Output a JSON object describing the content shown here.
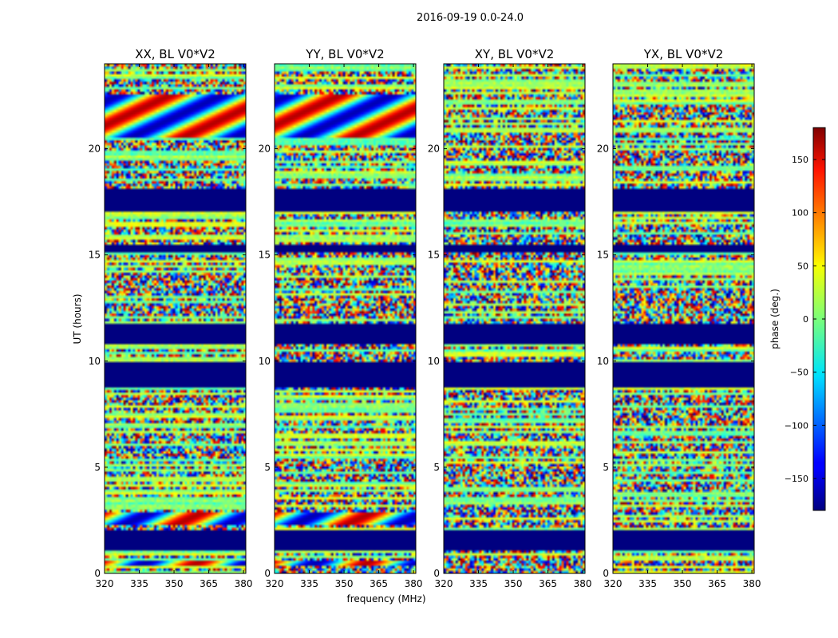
{
  "figure": {
    "suptitle": "2016-09-19 0.0-24.0",
    "xlabel": "frequency (MHz)",
    "ylabel": "UT (hours)"
  },
  "colorbar": {
    "label": "phase (deg.)",
    "ticks": [
      150,
      100,
      50,
      0,
      -50,
      -100,
      -150
    ],
    "tick_labels": [
      "150",
      "100",
      "50",
      "0",
      "−50",
      "−100",
      "−150"
    ],
    "range": [
      -180,
      180
    ],
    "colormap": "jet"
  },
  "chart_data": {
    "type": "heatmap",
    "x_label": "frequency (MHz)",
    "y_label": "UT (hours)",
    "x_range": [
      320,
      381
    ],
    "y_range": [
      0,
      24
    ],
    "x_ticks": [
      320,
      335,
      350,
      365,
      380
    ],
    "y_ticks": [
      0,
      5,
      10,
      15,
      20
    ],
    "value_label": "phase (deg.)",
    "value_range": [
      -180,
      180
    ],
    "masked_time_bands": [
      [
        1.1,
        2.0
      ],
      [
        8.8,
        10.0
      ],
      [
        10.8,
        11.8
      ],
      [
        15.1,
        15.5
      ],
      [
        17.1,
        18.1
      ]
    ],
    "panels": [
      {
        "title": "XX, BL V0*V2",
        "coherent_bands": [
          [
            20.5,
            22.6
          ],
          [
            2.3,
            2.9
          ],
          [
            0.3,
            0.6
          ]
        ]
      },
      {
        "title": "YY, BL V0*V2",
        "coherent_bands": [
          [
            20.5,
            22.6
          ],
          [
            2.3,
            2.9
          ],
          [
            0.3,
            0.6
          ]
        ]
      },
      {
        "title": "XY, BL V0*V2",
        "coherent_bands": []
      },
      {
        "title": "YX, BL V0*V2",
        "coherent_bands": []
      }
    ]
  }
}
